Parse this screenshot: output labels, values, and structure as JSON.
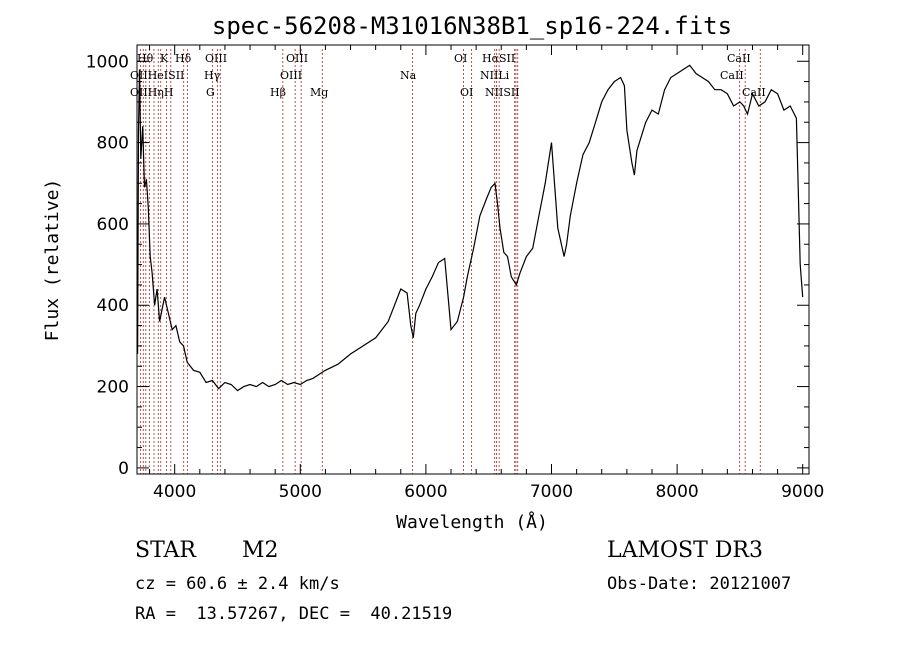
{
  "chart_data": {
    "type": "line",
    "title": "spec-56208-M31016N38B1_sp16-224.fits",
    "xlabel": "Wavelength (Å)",
    "ylabel": "Flux (relative)",
    "xlim": [
      3700,
      9050
    ],
    "ylim": [
      -15,
      1040
    ],
    "x_ticks": [
      4000,
      5000,
      6000,
      7000,
      8000,
      9000
    ],
    "y_ticks": [
      0,
      200,
      400,
      600,
      800,
      1000
    ],
    "grid": false,
    "line_color": "#000000",
    "marker_color": "#b22222",
    "spectrum": {
      "name": "",
      "x": [
        3705,
        3712,
        3720,
        3730,
        3745,
        3760,
        3775,
        3790,
        3805,
        3820,
        3840,
        3860,
        3880,
        3900,
        3920,
        3950,
        3980,
        4010,
        4040,
        4070,
        4100,
        4150,
        4200,
        4250,
        4300,
        4350,
        4400,
        4450,
        4500,
        4550,
        4600,
        4650,
        4700,
        4750,
        4800,
        4850,
        4900,
        4950,
        5000,
        5050,
        5100,
        5150,
        5200,
        5300,
        5400,
        5500,
        5600,
        5700,
        5800,
        5850,
        5880,
        5900,
        5920,
        5950,
        6000,
        6050,
        6100,
        6150,
        6200,
        6250,
        6300,
        6330,
        6380,
        6430,
        6480,
        6520,
        6550,
        6570,
        6590,
        6620,
        6650,
        6680,
        6700,
        6720,
        6750,
        6800,
        6850,
        6900,
        6950,
        7000,
        7050,
        7100,
        7120,
        7150,
        7200,
        7250,
        7300,
        7350,
        7400,
        7450,
        7500,
        7550,
        7580,
        7600,
        7620,
        7640,
        7660,
        7680,
        7700,
        7750,
        7800,
        7850,
        7900,
        7950,
        8000,
        8050,
        8100,
        8150,
        8200,
        8250,
        8300,
        8350,
        8400,
        8450,
        8500,
        8530,
        8560,
        8600,
        8650,
        8700,
        8750,
        8800,
        8850,
        8900,
        8950,
        8980,
        9000
      ],
      "y": [
        280,
        830,
        980,
        760,
        840,
        690,
        710,
        640,
        520,
        480,
        400,
        440,
        360,
        390,
        420,
        380,
        340,
        350,
        310,
        300,
        260,
        240,
        235,
        210,
        215,
        195,
        210,
        205,
        190,
        200,
        205,
        200,
        210,
        200,
        205,
        215,
        205,
        210,
        205,
        215,
        220,
        230,
        240,
        255,
        280,
        300,
        320,
        360,
        440,
        430,
        350,
        320,
        380,
        400,
        440,
        470,
        505,
        515,
        340,
        360,
        420,
        470,
        540,
        620,
        660,
        690,
        700,
        650,
        590,
        530,
        520,
        470,
        460,
        450,
        480,
        520,
        540,
        620,
        700,
        800,
        590,
        520,
        550,
        620,
        700,
        770,
        800,
        850,
        900,
        930,
        950,
        960,
        940,
        830,
        790,
        750,
        720,
        780,
        800,
        850,
        880,
        870,
        930,
        960,
        970,
        980,
        990,
        970,
        960,
        950,
        930,
        930,
        920,
        890,
        900,
        890,
        870,
        920,
        890,
        900,
        930,
        920,
        880,
        890,
        860,
        500,
        420
      ]
    },
    "markers": [
      {
        "x": 3729,
        "labels": [
          "OII"
        ]
      },
      {
        "x": 3750,
        "labels": [
          "OII"
        ]
      },
      {
        "x": 3770,
        "labels": [
          "Hθ"
        ]
      },
      {
        "x": 3798,
        "labels": [
          "Hθ"
        ]
      },
      {
        "x": 3835,
        "labels": [
          "Hη"
        ]
      },
      {
        "x": 3869,
        "labels": [
          "HeI"
        ]
      },
      {
        "x": 3889,
        "labels": [
          "Hζ"
        ]
      },
      {
        "x": 3934,
        "labels": [
          "K"
        ]
      },
      {
        "x": 3969,
        "labels": [
          "H"
        ]
      },
      {
        "x": 4072,
        "labels": [
          "SII"
        ]
      },
      {
        "x": 4102,
        "labels": [
          "Hδ"
        ]
      },
      {
        "x": 4300,
        "labels": [
          "G"
        ]
      },
      {
        "x": 4340,
        "labels": [
          "Hγ"
        ]
      },
      {
        "x": 4363,
        "labels": [
          "OIII"
        ]
      },
      {
        "x": 4861,
        "labels": [
          "Hβ"
        ]
      },
      {
        "x": 4959,
        "labels": [
          "OIII"
        ]
      },
      {
        "x": 5007,
        "labels": [
          "OIII"
        ]
      },
      {
        "x": 5175,
        "labels": [
          "Mg"
        ]
      },
      {
        "x": 5893,
        "labels": [
          "Na"
        ]
      },
      {
        "x": 6300,
        "labels": [
          "OI"
        ]
      },
      {
        "x": 6364,
        "labels": [
          "OI"
        ]
      },
      {
        "x": 6548,
        "labels": [
          "NII"
        ]
      },
      {
        "x": 6563,
        "labels": [
          "Hα"
        ]
      },
      {
        "x": 6583,
        "labels": [
          "NII"
        ]
      },
      {
        "x": 6707,
        "labels": [
          "Li"
        ]
      },
      {
        "x": 6717,
        "labels": [
          "SII"
        ]
      },
      {
        "x": 6731,
        "labels": [
          "SII"
        ]
      },
      {
        "x": 8498,
        "labels": [
          "CaII"
        ]
      },
      {
        "x": 8542,
        "labels": [
          "CaII"
        ]
      },
      {
        "x": 8662,
        "labels": [
          "CaII"
        ]
      }
    ],
    "marker_text_rows": [
      [
        "Hθ",
        "K",
        "Hδ",
        "OIII",
        "OIII",
        "OI",
        "HαSII",
        "CaII"
      ],
      [
        "OIIHeISII",
        "Hγ",
        "OIII",
        "Na",
        "NIILi",
        "CaII"
      ],
      [
        "OIIHηH",
        "G",
        "Hβ",
        "Mg",
        "OI",
        "NIISII",
        "CaII"
      ]
    ]
  },
  "footer": {
    "object_class": "STAR",
    "subclass": "M2",
    "survey": "LAMOST DR3",
    "redshift": "cz = 60.6 ± 2.4 km/s",
    "obs_date": "Obs-Date: 20121007",
    "coords": "RA =  13.57267, DEC =  40.21519"
  }
}
